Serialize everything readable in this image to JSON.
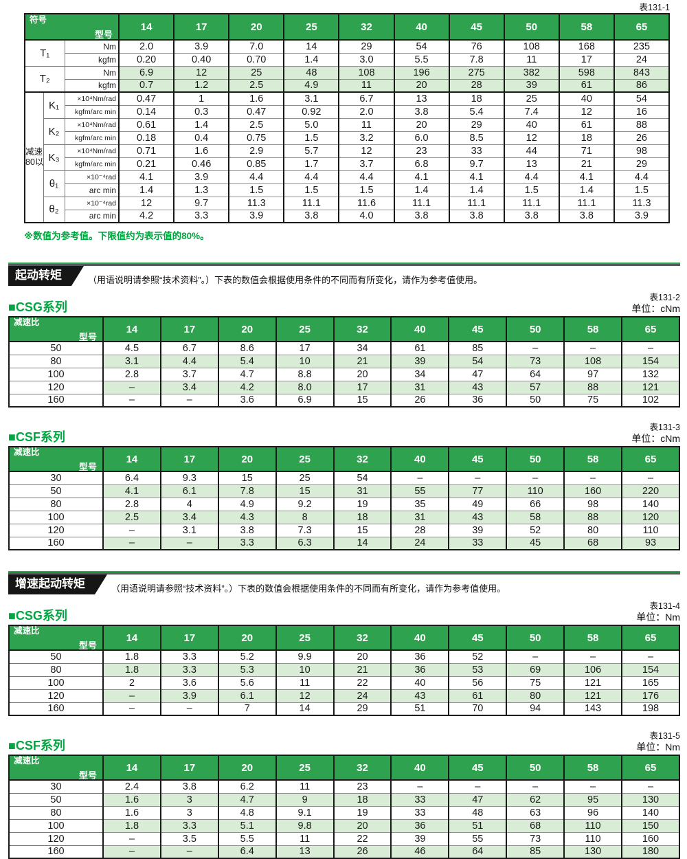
{
  "colors": {
    "header_green": "#2ea24f",
    "row_tint": "#d9ecd6",
    "accent_green": "#00a63f"
  },
  "table1": {
    "caption": "表131-1",
    "corner_top": "型号",
    "corner_bottom": "符号",
    "models": [
      "14",
      "17",
      "20",
      "25",
      "32",
      "40",
      "45",
      "50",
      "58",
      "65"
    ],
    "side_label_line1": "减速比",
    "side_label_line2": "80以上",
    "groups": [
      {
        "symbol": "T₁",
        "shaded": false,
        "in_block": false,
        "rows": [
          {
            "unit": "Nm",
            "small": false,
            "values": [
              "2.0",
              "3.9",
              "7.0",
              "14",
              "29",
              "54",
              "76",
              "108",
              "168",
              "235"
            ]
          },
          {
            "unit": "kgfm",
            "small": false,
            "values": [
              "0.20",
              "0.40",
              "0.70",
              "1.4",
              "3.0",
              "5.5",
              "7.8",
              "11",
              "17",
              "24"
            ]
          }
        ]
      },
      {
        "symbol": "T₂",
        "shaded": true,
        "in_block": false,
        "rows": [
          {
            "unit": "Nm",
            "small": false,
            "values": [
              "6.9",
              "12",
              "25",
              "48",
              "108",
              "196",
              "275",
              "382",
              "598",
              "843"
            ]
          },
          {
            "unit": "kgfm",
            "small": false,
            "values": [
              "0.7",
              "1.2",
              "2.5",
              "4.9",
              "11",
              "20",
              "28",
              "39",
              "61",
              "86"
            ]
          }
        ]
      },
      {
        "symbol": "K₁",
        "shaded": false,
        "in_block": true,
        "rows": [
          {
            "unit": "×10⁴Nm/rad",
            "small": true,
            "values": [
              "0.47",
              "1",
              "1.6",
              "3.1",
              "6.7",
              "13",
              "18",
              "25",
              "40",
              "54"
            ]
          },
          {
            "unit": "kgfm/arc min",
            "small": true,
            "values": [
              "0.14",
              "0.3",
              "0.47",
              "0.92",
              "2.0",
              "3.8",
              "5.4",
              "7.4",
              "12",
              "16"
            ]
          }
        ]
      },
      {
        "symbol": "K₂",
        "shaded": false,
        "in_block": true,
        "rows": [
          {
            "unit": "×10⁴Nm/rad",
            "small": true,
            "values": [
              "0.61",
              "1.4",
              "2.5",
              "5.0",
              "11",
              "20",
              "29",
              "40",
              "61",
              "88"
            ]
          },
          {
            "unit": "kgfm/arc min",
            "small": true,
            "values": [
              "0.18",
              "0.4",
              "0.75",
              "1.5",
              "3.2",
              "6.0",
              "8.5",
              "12",
              "18",
              "26"
            ]
          }
        ]
      },
      {
        "symbol": "K₃",
        "shaded": false,
        "in_block": true,
        "rows": [
          {
            "unit": "×10⁴Nm/rad",
            "small": true,
            "values": [
              "0.71",
              "1.6",
              "2.9",
              "5.7",
              "12",
              "23",
              "33",
              "44",
              "71",
              "98"
            ]
          },
          {
            "unit": "kgfm/arc min",
            "small": true,
            "values": [
              "0.21",
              "0.46",
              "0.85",
              "1.7",
              "3.7",
              "6.8",
              "9.7",
              "13",
              "21",
              "29"
            ]
          }
        ]
      },
      {
        "symbol": "θ₁",
        "shaded": false,
        "in_block": true,
        "rows": [
          {
            "unit": "×10⁻⁴rad",
            "small": true,
            "values": [
              "4.1",
              "3.9",
              "4.4",
              "4.4",
              "4.4",
              "4.1",
              "4.1",
              "4.4",
              "4.1",
              "4.4"
            ]
          },
          {
            "unit": "arc min",
            "small": false,
            "values": [
              "1.4",
              "1.3",
              "1.5",
              "1.5",
              "1.5",
              "1.4",
              "1.4",
              "1.5",
              "1.4",
              "1.5"
            ]
          }
        ]
      },
      {
        "symbol": "θ₂",
        "shaded": false,
        "in_block": true,
        "rows": [
          {
            "unit": "×10⁻⁴rad",
            "small": true,
            "values": [
              "12",
              "9.7",
              "11.3",
              "11.1",
              "11.6",
              "11.1",
              "11.1",
              "11.1",
              "11.1",
              "11.3"
            ]
          },
          {
            "unit": "arc min",
            "small": false,
            "values": [
              "4.2",
              "3.3",
              "3.9",
              "3.8",
              "4.0",
              "3.8",
              "3.8",
              "3.8",
              "3.8",
              "3.9"
            ]
          }
        ]
      }
    ],
    "footnote": "※数值为参考值。下限值约为表示值的80%。"
  },
  "sections": [
    {
      "banner": "起动转矩",
      "note": "（用语说明请参照“技术资料”。）下表的数值会根据使用条件的不同而有所变化，请作为参考值使用。",
      "tables": [
        {
          "series": "■CSG系列",
          "caption": "表131-2",
          "unit": "单位：cNm",
          "corner_top": "型号",
          "corner_bottom": "减速比",
          "models": [
            "14",
            "17",
            "20",
            "25",
            "32",
            "40",
            "45",
            "50",
            "58",
            "65"
          ],
          "rows": [
            {
              "ratio": "50",
              "values": [
                "4.5",
                "6.7",
                "8.6",
                "17",
                "34",
                "61",
                "85",
                "–",
                "–",
                "–"
              ]
            },
            {
              "ratio": "80",
              "values": [
                "3.1",
                "4.4",
                "5.4",
                "10",
                "21",
                "39",
                "54",
                "73",
                "108",
                "154"
              ]
            },
            {
              "ratio": "100",
              "values": [
                "2.8",
                "3.7",
                "4.7",
                "8.8",
                "20",
                "34",
                "47",
                "64",
                "97",
                "132"
              ]
            },
            {
              "ratio": "120",
              "values": [
                "–",
                "3.4",
                "4.2",
                "8.0",
                "17",
                "31",
                "43",
                "57",
                "88",
                "121"
              ]
            },
            {
              "ratio": "160",
              "values": [
                "–",
                "–",
                "3.6",
                "6.9",
                "15",
                "26",
                "36",
                "50",
                "75",
                "102"
              ]
            }
          ]
        },
        {
          "series": "■CSF系列",
          "caption": "表131-3",
          "unit": "单位：cNm",
          "corner_top": "型号",
          "corner_bottom": "减速比",
          "models": [
            "14",
            "17",
            "20",
            "25",
            "32",
            "40",
            "45",
            "50",
            "58",
            "65"
          ],
          "rows": [
            {
              "ratio": "30",
              "values": [
                "6.4",
                "9.3",
                "15",
                "25",
                "54",
                "–",
                "–",
                "–",
                "–",
                "–"
              ]
            },
            {
              "ratio": "50",
              "values": [
                "4.1",
                "6.1",
                "7.8",
                "15",
                "31",
                "55",
                "77",
                "110",
                "160",
                "220"
              ]
            },
            {
              "ratio": "80",
              "values": [
                "2.8",
                "4",
                "4.9",
                "9.2",
                "19",
                "35",
                "49",
                "66",
                "98",
                "140"
              ]
            },
            {
              "ratio": "100",
              "values": [
                "2.5",
                "3.4",
                "4.3",
                "8",
                "18",
                "31",
                "43",
                "58",
                "88",
                "120"
              ]
            },
            {
              "ratio": "120",
              "values": [
                "–",
                "3.1",
                "3.8",
                "7.3",
                "15",
                "28",
                "39",
                "52",
                "80",
                "110"
              ]
            },
            {
              "ratio": "160",
              "values": [
                "–",
                "–",
                "3.3",
                "6.3",
                "14",
                "24",
                "33",
                "45",
                "68",
                "93"
              ]
            }
          ]
        }
      ]
    },
    {
      "banner": "增速起动转矩",
      "note": "（用语说明请参照“技术资料”。）下表的数值会根据使用条件的不同而有所变化，请作为参考值使用。",
      "tables": [
        {
          "series": "■CSG系列",
          "caption": "表131-4",
          "unit": "单位：Nm",
          "corner_top": "型号",
          "corner_bottom": "减速比",
          "models": [
            "14",
            "17",
            "20",
            "25",
            "32",
            "40",
            "45",
            "50",
            "58",
            "65"
          ],
          "rows": [
            {
              "ratio": "50",
              "values": [
                "1.8",
                "3.3",
                "5.2",
                "9.9",
                "20",
                "36",
                "52",
                "–",
                "–",
                "–"
              ]
            },
            {
              "ratio": "80",
              "values": [
                "1.8",
                "3.3",
                "5.3",
                "10",
                "21",
                "36",
                "53",
                "69",
                "106",
                "154"
              ]
            },
            {
              "ratio": "100",
              "values": [
                "2",
                "3.6",
                "5.6",
                "11",
                "22",
                "40",
                "56",
                "75",
                "121",
                "165"
              ]
            },
            {
              "ratio": "120",
              "values": [
                "–",
                "3.9",
                "6.1",
                "12",
                "24",
                "43",
                "61",
                "80",
                "121",
                "176"
              ]
            },
            {
              "ratio": "160",
              "values": [
                "–",
                "–",
                "7",
                "14",
                "29",
                "51",
                "70",
                "94",
                "143",
                "198"
              ]
            }
          ]
        },
        {
          "series": "■CSF系列",
          "caption": "表131-5",
          "unit": "单位：Nm",
          "corner_top": "型号",
          "corner_bottom": "减速比",
          "models": [
            "14",
            "17",
            "20",
            "25",
            "32",
            "40",
            "45",
            "50",
            "58",
            "65"
          ],
          "rows": [
            {
              "ratio": "30",
              "values": [
                "2.4",
                "3.8",
                "6.2",
                "11",
                "23",
                "–",
                "–",
                "–",
                "–",
                "–"
              ]
            },
            {
              "ratio": "50",
              "values": [
                "1.6",
                "3",
                "4.7",
                "9",
                "18",
                "33",
                "47",
                "62",
                "95",
                "130"
              ]
            },
            {
              "ratio": "80",
              "values": [
                "1.6",
                "3",
                "4.8",
                "9.1",
                "19",
                "33",
                "48",
                "63",
                "96",
                "140"
              ]
            },
            {
              "ratio": "100",
              "values": [
                "1.8",
                "3.3",
                "5.1",
                "9.8",
                "20",
                "36",
                "51",
                "68",
                "110",
                "150"
              ]
            },
            {
              "ratio": "120",
              "values": [
                "–",
                "3.5",
                "5.5",
                "11",
                "22",
                "39",
                "55",
                "73",
                "110",
                "160"
              ]
            },
            {
              "ratio": "160",
              "values": [
                "–",
                "–",
                "6.4",
                "13",
                "26",
                "46",
                "64",
                "85",
                "130",
                "180"
              ]
            }
          ]
        }
      ]
    }
  ]
}
